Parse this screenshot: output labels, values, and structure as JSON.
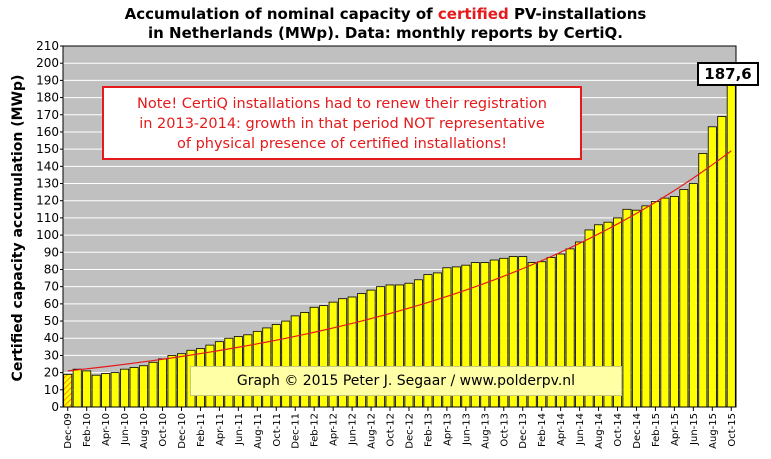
{
  "title_line1_a": "Accumulation  of nominal  capacity of ",
  "title_line1_hl": "certified",
  "title_line1_b": " PV-installations",
  "title_line2": "in Netherlands (MWp). Data: monthly  reports by CertiQ.",
  "note_lines": [
    "Note! CertiQ installations had to renew their registration",
    "in 2013-2014:  growth in that period NOT representative",
    "of physical presence of certified installations!"
  ],
  "credit": "Graph © 2015 Peter J. Segaar / www.polderpv.nl",
  "last_value_label": "187,6",
  "colors": {
    "plot_bg": "#c0c0c0",
    "bar": "#ffff00",
    "trend": "#e41a1c",
    "note_border": "#e41a1c",
    "credit_bg": "#ffffa6"
  },
  "chart_data": {
    "type": "bar",
    "ylabel": "Certified capacity accumulation (MWp)",
    "ylim": [
      0,
      210
    ],
    "ytick_step": 10,
    "grid": true,
    "first_bar_hatched": true,
    "x_labels": [
      "Dec-09",
      "Feb-10",
      "Apr-10",
      "Jun-10",
      "Aug-10",
      "Oct-10",
      "Dec-10",
      "Feb-11",
      "Apr-11",
      "Jun-11",
      "Aug-11",
      "Oct-11",
      "Dec-11",
      "Feb-12",
      "Apr-12",
      "Jun-12",
      "Aug-12",
      "Oct-12",
      "Dec-12",
      "Feb-13",
      "Apr-13",
      "Jun-13",
      "Aug-13",
      "Oct-13",
      "Dec-13",
      "Feb-14",
      "Apr-14",
      "Jun-14",
      "Aug-14",
      "Oct-14",
      "Dec-14",
      "Feb-15",
      "Apr-15",
      "Jun-15",
      "Aug-15",
      "Oct-15"
    ],
    "values": [
      19.0,
      22.0,
      21.0,
      18.5,
      19.5,
      20.0,
      22.0,
      23.0,
      24.0,
      26.0,
      28.0,
      30.0,
      31.0,
      33.0,
      34.0,
      36.0,
      38.0,
      40.0,
      41.0,
      42.0,
      44.0,
      46.0,
      48.0,
      50.0,
      53.0,
      55.0,
      58.0,
      59.0,
      61.0,
      63.0,
      64.0,
      66.0,
      68.0,
      70.0,
      71.0,
      71.0,
      72.0,
      74.0,
      77.0,
      78.0,
      81.0,
      81.5,
      82.5,
      84.0,
      84.0,
      85.5,
      86.5,
      87.5,
      87.5,
      84.0,
      84.5,
      87.0,
      89.0,
      92.0,
      96.0,
      103.0,
      106.0,
      107.5,
      110.0,
      115.0,
      114.5,
      117.0,
      119.5,
      121.5,
      122.5,
      126.5,
      130.0,
      147.5,
      163.0,
      169.0,
      187.6
    ],
    "trend_start": 21.0,
    "trend_end": 149.0
  }
}
